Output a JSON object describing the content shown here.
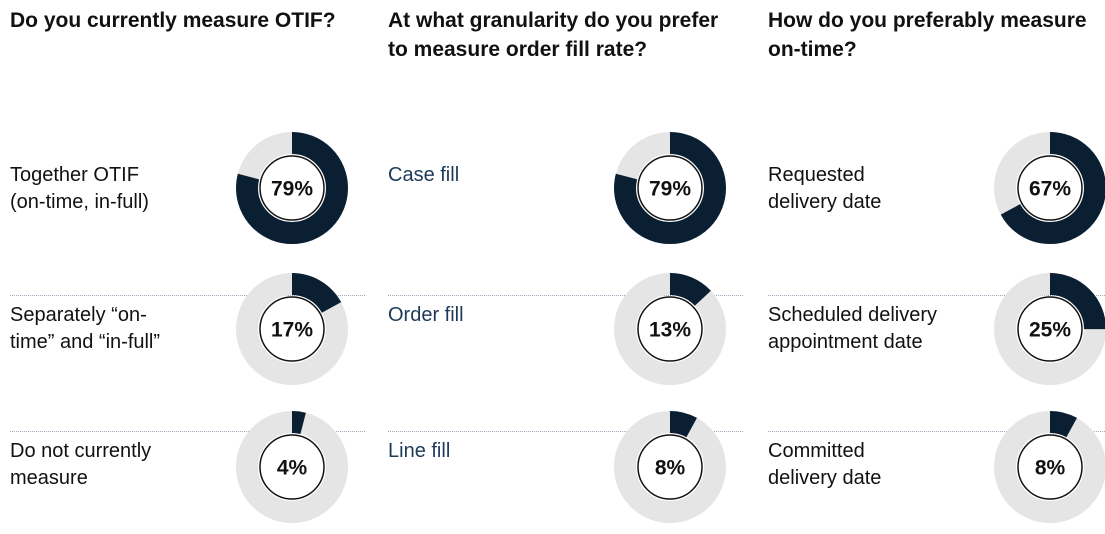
{
  "chart_data": [
    {
      "type": "donut",
      "title": "Do you currently measure OTIF?",
      "categories": [
        "Together OTIF (on-time, in-full)",
        "Separately “on-time” and “in-full”",
        "Do not currently measure"
      ],
      "values": [
        79,
        17,
        4
      ],
      "value_labels": [
        "79%",
        "17%",
        "4%"
      ],
      "color": "#0b1f33",
      "track_color": "#e5e5e5",
      "ylim": [
        0,
        100
      ]
    },
    {
      "type": "donut",
      "title": "At what granularity do you prefer to measure order fill rate?",
      "categories": [
        "Case fill",
        "Order fill",
        "Line fill"
      ],
      "values": [
        79,
        13,
        8
      ],
      "value_labels": [
        "79%",
        "13%",
        "8%"
      ],
      "color": "#0b1f33",
      "track_color": "#e5e5e5",
      "ylim": [
        0,
        100
      ]
    },
    {
      "type": "donut",
      "title": "How do you preferably measure on-time?",
      "categories": [
        "Requested delivery date",
        "Scheduled delivery appointment date",
        "Committed delivery date"
      ],
      "values": [
        67,
        25,
        8
      ],
      "value_labels": [
        "67%",
        "25%",
        "8%"
      ],
      "color": "#0b1f33",
      "track_color": "#e5e5e5",
      "ylim": [
        0,
        100
      ]
    }
  ]
}
